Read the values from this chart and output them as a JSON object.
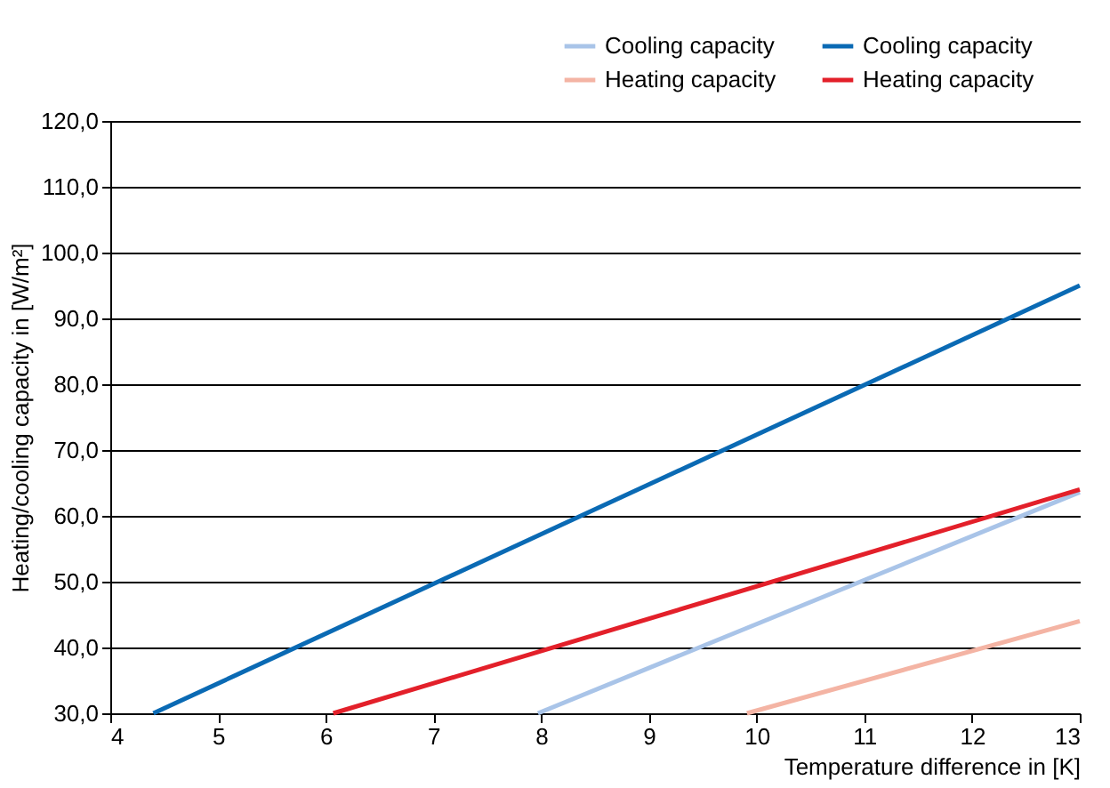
{
  "chart_data": {
    "type": "line",
    "xlabel": "Temperature difference in [K]",
    "ylabel": "Heating/cooling capacity in [W/m²]",
    "xlim": [
      4,
      13
    ],
    "xticks": [
      4,
      5,
      6,
      7,
      8,
      9,
      10,
      11,
      12,
      13
    ],
    "ylim": [
      30,
      120
    ],
    "yticks": [
      {
        "value": 30,
        "label": "30,0"
      },
      {
        "value": 40,
        "label": "40,0"
      },
      {
        "value": 50,
        "label": "50,0"
      },
      {
        "value": 60,
        "label": "60,0"
      },
      {
        "value": 70,
        "label": "70,0"
      },
      {
        "value": 80,
        "label": "80,0"
      },
      {
        "value": 90,
        "label": "90,0"
      },
      {
        "value": 100,
        "label": "100,0"
      },
      {
        "value": 110,
        "label": "110,0"
      },
      {
        "value": 120,
        "label": "120,0"
      }
    ],
    "grid": "y",
    "legend": "top right",
    "marker": "none",
    "line_style": "solid",
    "series": [
      {
        "name": "Cooling capacity",
        "color": "#a9c4e8",
        "x": [
          7.97,
          13
        ],
        "values": [
          30,
          63.6
        ]
      },
      {
        "name": "Heating capacity",
        "color": "#f4b4a4",
        "x": [
          9.91,
          13
        ],
        "values": [
          30,
          44
        ]
      },
      {
        "name": "Cooling capacity",
        "color": "#0a6ab4",
        "x": [
          4.4,
          13
        ],
        "values": [
          30,
          95
        ]
      },
      {
        "name": "Heating capacity",
        "color": "#e3202a",
        "x": [
          6.07,
          13
        ],
        "values": [
          30,
          64
        ]
      }
    ]
  }
}
